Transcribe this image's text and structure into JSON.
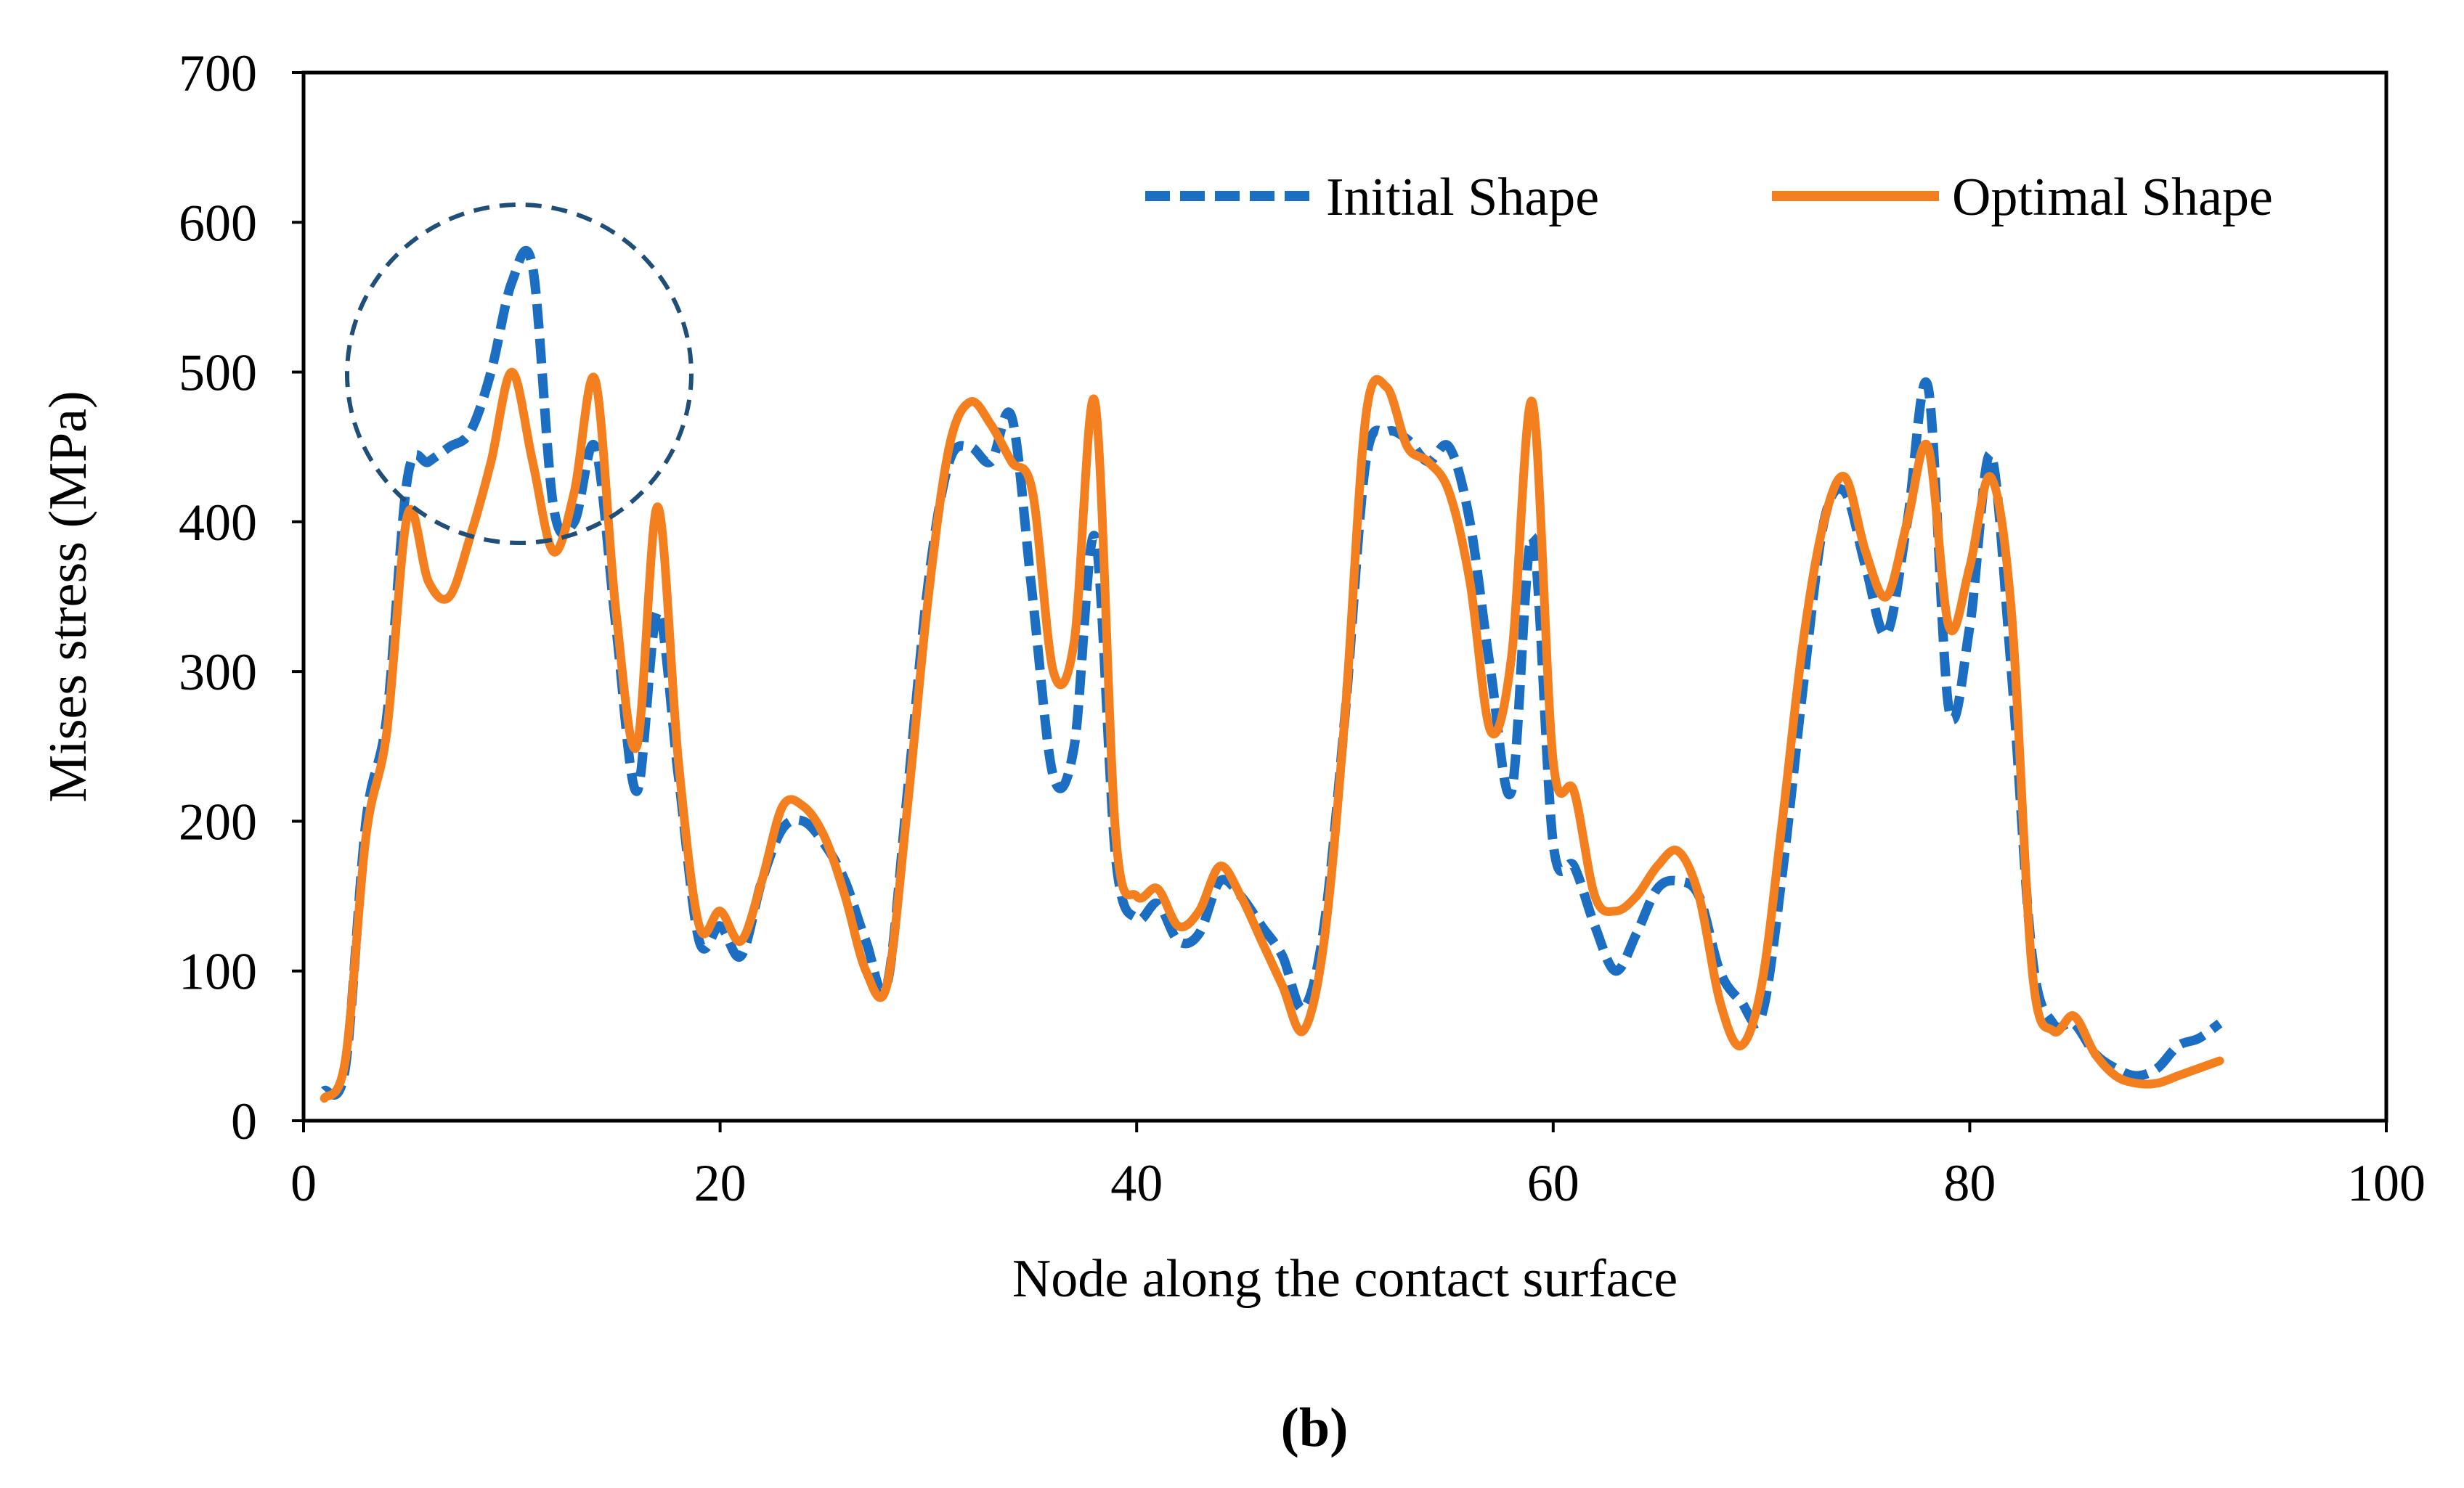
{
  "chart_data": {
    "type": "line",
    "title": "",
    "xlabel": "Node along the contact surface",
    "ylabel": "Mises stress (MPa)",
    "xlim": [
      0,
      100
    ],
    "ylim": [
      0,
      700
    ],
    "x_ticks": [
      0,
      20,
      40,
      60,
      80,
      100
    ],
    "y_ticks": [
      0,
      100,
      200,
      300,
      400,
      500,
      600,
      700
    ],
    "grid": false,
    "legend_position": "top-right",
    "panel_label": "(b)",
    "annotation": "dashed circle highlighting initial-shape peak near node 10",
    "colors": {
      "initial": "#1b6ec2",
      "optimal": "#f47f1f",
      "circle": "#1f4e79"
    },
    "x": [
      1,
      2,
      3,
      4,
      5,
      6,
      7,
      8,
      9,
      10,
      11,
      12,
      13,
      14,
      15,
      16,
      17,
      18,
      19,
      20,
      21,
      22,
      23,
      24,
      25,
      26,
      27,
      28,
      29,
      30,
      31,
      32,
      33,
      34,
      35,
      36,
      37,
      38,
      39,
      40,
      41,
      42,
      43,
      44,
      45,
      46,
      47,
      48,
      49,
      50,
      51,
      52,
      53,
      54,
      55,
      56,
      57,
      58,
      59,
      60,
      61,
      62,
      63,
      64,
      65,
      66,
      67,
      68,
      69,
      70,
      71,
      72,
      73,
      74,
      75,
      76,
      77,
      78,
      79,
      80,
      81,
      82,
      83,
      84,
      85,
      86,
      87,
      88,
      89,
      90,
      91,
      92
    ],
    "series": [
      {
        "name": "Initial Shape",
        "style": "dashed",
        "values": [
          20,
          35,
          200,
          270,
          430,
          440,
          450,
          460,
          500,
          560,
          570,
          410,
          400,
          450,
          330,
          220,
          340,
          230,
          120,
          130,
          110,
          160,
          195,
          200,
          185,
          160,
          120,
          90,
          220,
          360,
          440,
          450,
          440,
          470,
          350,
          230,
          250,
          390,
          175,
          135,
          145,
          120,
          125,
          160,
          150,
          130,
          110,
          75,
          130,
          270,
          440,
          460,
          455,
          440,
          450,
          400,
          300,
          220,
          390,
          185,
          170,
          130,
          100,
          125,
          155,
          160,
          150,
          100,
          80,
          70,
          165,
          290,
          400,
          420,
          370,
          325,
          400,
          490,
          275,
          330,
          445,
          300,
          110,
          65,
          65,
          45,
          35,
          30,
          35,
          50,
          55,
          65
        ]
      },
      {
        "name": "Optimal Shape",
        "style": "solid",
        "values": [
          15,
          40,
          190,
          260,
          405,
          360,
          350,
          390,
          440,
          500,
          440,
          380,
          420,
          495,
          340,
          250,
          410,
          240,
          130,
          140,
          120,
          160,
          210,
          210,
          190,
          150,
          100,
          90,
          210,
          350,
          450,
          480,
          465,
          440,
          420,
          300,
          320,
          480,
          190,
          150,
          155,
          130,
          140,
          170,
          150,
          120,
          90,
          60,
          120,
          270,
          470,
          490,
          450,
          440,
          420,
          360,
          260,
          310,
          480,
          240,
          220,
          150,
          140,
          150,
          170,
          180,
          150,
          80,
          50,
          90,
          200,
          320,
          400,
          430,
          380,
          350,
          400,
          450,
          330,
          370,
          430,
          340,
          100,
          60,
          70,
          45,
          30,
          25,
          25,
          30,
          35,
          40
        ]
      }
    ]
  }
}
